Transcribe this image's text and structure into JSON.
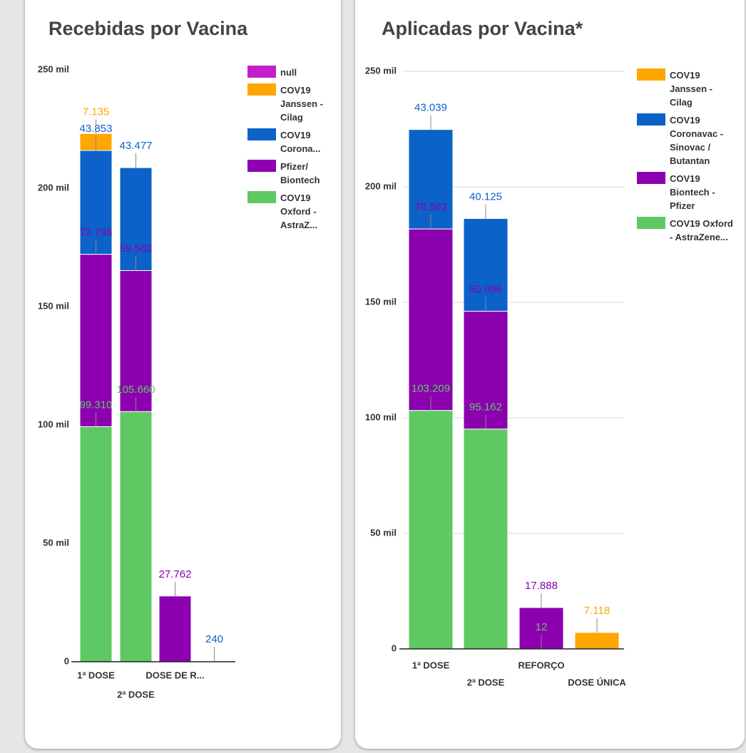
{
  "chart_data": [
    {
      "type": "stacked_bar",
      "title": "Recebidas por Vacina",
      "categories": [
        "1ª DOSE",
        "2ª DOSE",
        "DOSE DE R...",
        null
      ],
      "ylim": [
        0,
        250000
      ],
      "yticks": [
        0,
        {
          "value": 50000,
          "label": "50 mil"
        },
        {
          "value": 100000,
          "label": "100 mil"
        },
        {
          "value": 150000,
          "label": "150 mil"
        },
        {
          "value": 200000,
          "label": "200 mil"
        },
        {
          "value": 250000,
          "label": "250 mil"
        }
      ],
      "grid": false,
      "series": [
        {
          "name": "COV19 Oxford - AstraZ...",
          "color": "#5ec962",
          "values": [
            99310,
            105660,
            null,
            null
          ],
          "value_labels": [
            "99.310",
            "105.660",
            null,
            null
          ]
        },
        {
          "name": "Pfizer/ Biontech",
          "color": "#8c00b0",
          "values": [
            72798,
            59562,
            27762,
            null
          ],
          "value_labels": [
            "72.798",
            "59.562",
            "27.762",
            null
          ]
        },
        {
          "name": "COV19 Corona...",
          "color": "#0b62c9",
          "values": [
            43853,
            43477,
            null,
            240
          ],
          "value_labels": [
            "43.853",
            "43.477",
            null,
            "240"
          ]
        },
        {
          "name": "COV19 Janssen - Cilag",
          "color": "#ffa600",
          "values": [
            7135,
            null,
            null,
            null
          ],
          "value_labels": [
            "7.135",
            null,
            null,
            null
          ]
        },
        {
          "name": "null",
          "color": "#c21ec9",
          "values": [
            null,
            null,
            null,
            null
          ]
        }
      ]
    },
    {
      "type": "stacked_bar",
      "title": "Aplicadas por Vacina*",
      "categories": [
        "1ª DOSE",
        "2ª DOSE",
        "REFORÇO",
        "DOSE ÚNICA"
      ],
      "ylim": [
        0,
        250000
      ],
      "yticks": [
        0,
        {
          "value": 50000,
          "label": "50 mil"
        },
        {
          "value": 100000,
          "label": "100 mil"
        },
        {
          "value": 150000,
          "label": "150 mil"
        },
        {
          "value": 200000,
          "label": "200 mil"
        },
        {
          "value": 250000,
          "label": "250 mil"
        }
      ],
      "grid": true,
      "series": [
        {
          "name": "COV19 Oxford - AstraZene...",
          "color": "#5ec962",
          "values": [
            103209,
            95162,
            12,
            null
          ],
          "value_labels": [
            "103.209",
            "95.162",
            "12",
            null
          ]
        },
        {
          "name": "COV19 Biontech - Pfizer",
          "color": "#8c00b0",
          "values": [
            78562,
            50996,
            17888,
            null
          ],
          "value_labels": [
            "78.562",
            "50.996",
            "17.888",
            null
          ]
        },
        {
          "name": "COV19 Coronavac - Sinovac / Butantan",
          "color": "#0b62c9",
          "values": [
            43039,
            40125,
            null,
            null
          ],
          "value_labels": [
            "43.039",
            "40.125",
            null,
            null
          ]
        },
        {
          "name": "COV19 Janssen - Cilag",
          "color": "#ffa600",
          "values": [
            null,
            null,
            null,
            7118
          ],
          "value_labels": [
            null,
            null,
            null,
            "7.118"
          ]
        }
      ]
    }
  ]
}
